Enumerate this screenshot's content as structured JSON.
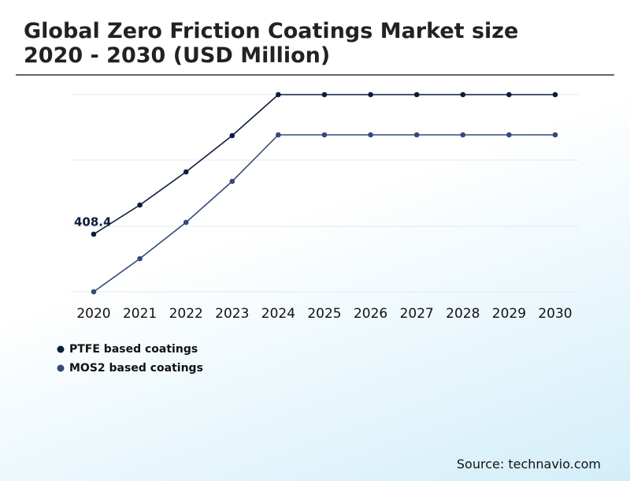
{
  "chart_data": {
    "type": "line",
    "title": "Global Zero Friction Coatings Market size 2020 - 2030 (USD Million)",
    "categories": [
      "2020",
      "2021",
      "2022",
      "2023",
      "2024",
      "2025",
      "2026",
      "2027",
      "2028",
      "2029",
      "2030"
    ],
    "series": [
      {
        "name": "PTFE based coatings",
        "color": "#0d1b3e",
        "values": [
          408.4,
          615.4,
          850.3,
          1107.7,
          1398.6,
          1398.6,
          1398.6,
          1398.6,
          1398.6,
          1398.6,
          1398.6
        ]
      },
      {
        "name": "MOS2 based coatings",
        "color": "#34497a",
        "values": [
          0,
          235,
          492.3,
          783.2,
          1113.3,
          1113.3,
          1113.3,
          1113.3,
          1113.3,
          1113.3,
          1113.3
        ]
      }
    ],
    "ylim": [
      0,
      1398.6
    ],
    "source": "Source: technavio.com"
  }
}
